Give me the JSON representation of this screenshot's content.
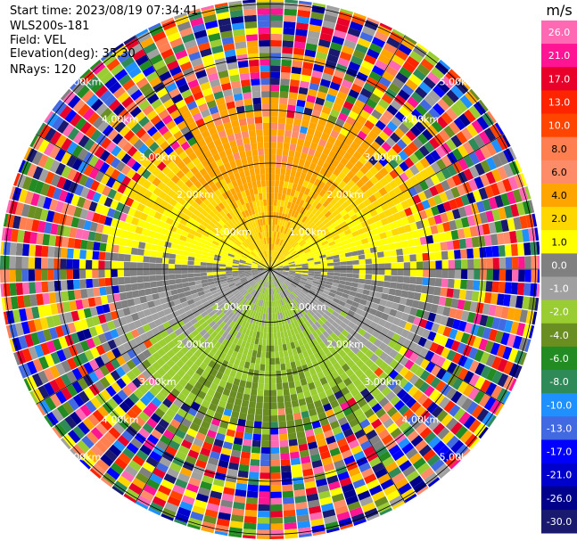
{
  "info": {
    "start_time": "Start time: 2023/08/19 07:34:41",
    "instrument": "WLS200s-181",
    "field": "Field: VEL",
    "elevation": "Elevation(deg): 35.30",
    "nrays": "NRays: 120"
  },
  "colorbar": {
    "unit": "m/s",
    "ticks": [
      "26.0",
      "21.0",
      "17.0",
      "13.0",
      "10.0",
      "8.0",
      "6.0",
      "4.0",
      "2.0",
      "1.0",
      "0.0",
      "-1.0",
      "-2.0",
      "-4.0",
      "-6.0",
      "-8.0",
      "-10.0",
      "-13.0",
      "-17.0",
      "-21.0",
      "-26.0",
      "-30.0"
    ],
    "colors": [
      "#ff69b4",
      "#ff1493",
      "#e8002b",
      "#ff2400",
      "#ff4500",
      "#ff7f50",
      "#ff8c69",
      "#ffa500",
      "#ffd700",
      "#ffff00",
      "#808080",
      "#a0a0a0",
      "#9acd32",
      "#6b8e23",
      "#228b22",
      "#2e8b57",
      "#1e90ff",
      "#4169e1",
      "#0000ff",
      "#0000cd",
      "#00008b",
      "#191970"
    ]
  },
  "chart_data": {
    "type": "ppi_scan",
    "field": "VEL",
    "units": "m/s",
    "nrays": 120,
    "elevation_deg": 35.3,
    "range_rings_km": [
      1.0,
      2.0,
      3.0,
      4.0,
      5.0
    ],
    "ring_labels": [
      "1.00km",
      "2.00km",
      "3.00km",
      "4.00km",
      "5.00km"
    ],
    "vmin": -30.0,
    "vmax": 26.0,
    "description": "Radial velocity: positive (warm) north of radar, negative (cool) south, noisy beyond ~3 km"
  }
}
